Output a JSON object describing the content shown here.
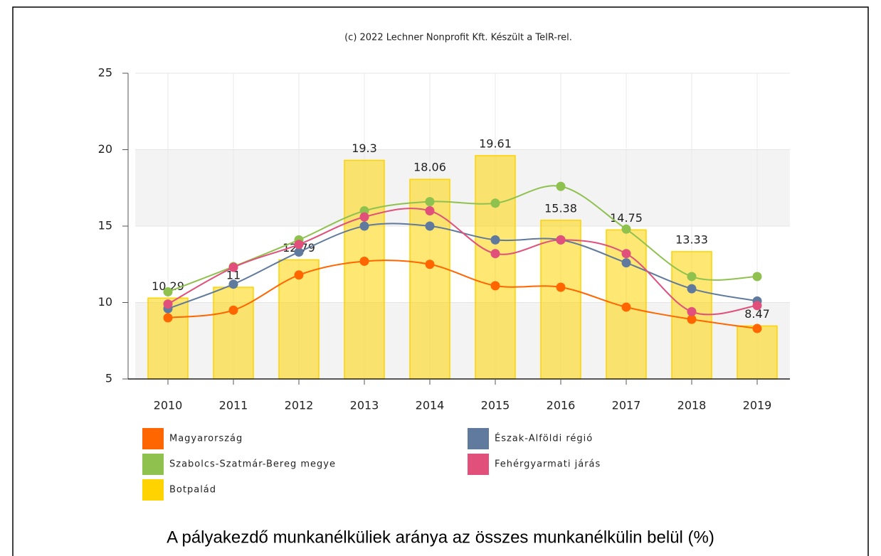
{
  "chart_data": {
    "type": "bar",
    "credit": "(c) 2022 Lechner Nonprofit Kft. Készült a TeIR-rel.",
    "title": "A pályakezdő munkanélküliek aránya az összes munkanélkülin belül (%)",
    "categories": [
      "2010",
      "2011",
      "2012",
      "2013",
      "2014",
      "2015",
      "2016",
      "2017",
      "2018",
      "2019"
    ],
    "ylim": [
      5,
      25
    ],
    "yticks": [
      5,
      10,
      15,
      20,
      25
    ],
    "grid": true,
    "alternate_bands": true,
    "series": [
      {
        "name": "Magyarország",
        "type": "line",
        "color": "#ff6600",
        "values": [
          9.0,
          9.5,
          11.8,
          12.7,
          12.5,
          11.1,
          11.0,
          9.7,
          8.9,
          8.3
        ]
      },
      {
        "name": "Észak-Alföldi régió",
        "type": "line",
        "color": "#5f7a9c",
        "values": [
          9.6,
          11.2,
          13.3,
          15.0,
          15.0,
          14.1,
          14.1,
          12.6,
          10.9,
          10.1
        ]
      },
      {
        "name": "Szabolcs-Szatmár-Bereg megye",
        "type": "line",
        "color": "#8fc14f",
        "values": [
          10.7,
          12.35,
          14.1,
          16.0,
          16.6,
          16.5,
          17.6,
          14.8,
          11.7,
          11.7
        ]
      },
      {
        "name": "Fehérgyarmati járás",
        "type": "line",
        "color": "#e0507a",
        "values": [
          9.9,
          12.3,
          13.8,
          15.6,
          16.0,
          13.2,
          14.1,
          13.2,
          9.4,
          9.8
        ]
      },
      {
        "name": "Botpalád",
        "type": "bar",
        "color": "#ffd300",
        "values": [
          10.29,
          11,
          12.79,
          19.3,
          18.06,
          19.61,
          15.38,
          14.75,
          13.33,
          8.47
        ]
      }
    ]
  }
}
